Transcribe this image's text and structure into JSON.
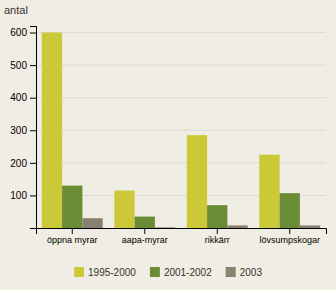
{
  "chart_data": {
    "type": "bar",
    "categories": [
      "öppna myrar",
      "aapa-myrar",
      "rikkärr",
      "lövsumpskogar"
    ],
    "series": [
      {
        "name": "1995-2000",
        "color": "#ccc938",
        "values": [
          600,
          115,
          285,
          225
        ]
      },
      {
        "name": "2001-2002",
        "color": "#6a8c35",
        "values": [
          130,
          35,
          70,
          107
        ]
      },
      {
        "name": "2003",
        "color": "#8a8070",
        "values": [
          30,
          2,
          8,
          8
        ]
      }
    ],
    "ylabel": "antal",
    "ylim": [
      0,
      620
    ],
    "yticks": [
      100,
      200,
      300,
      400,
      500,
      600
    ],
    "grid": true,
    "legend": "bottom"
  }
}
